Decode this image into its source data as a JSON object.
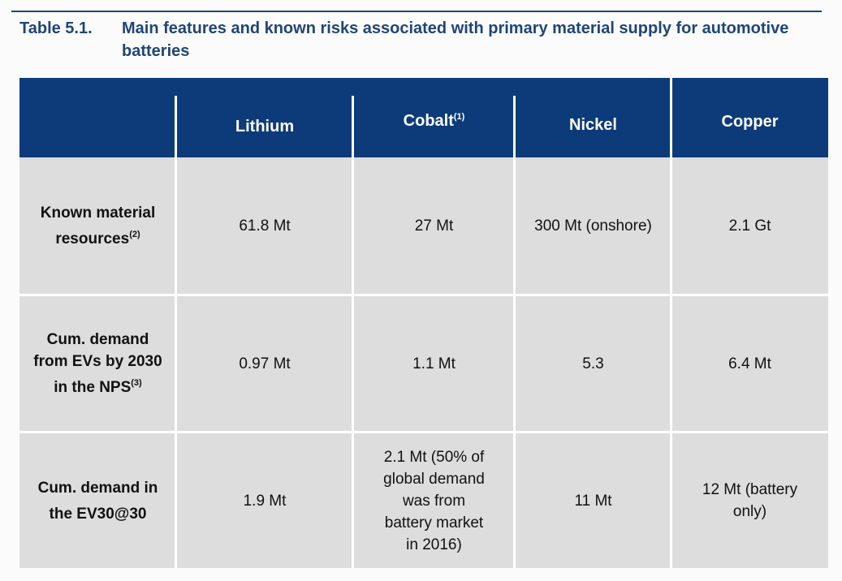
{
  "caption": {
    "number": "Table 5.1.",
    "title": "Main features and known risks associated with primary material supply for automotive batteries"
  },
  "columns": [
    {
      "label": "Lithium",
      "sup": ""
    },
    {
      "label": "Cobalt",
      "sup": "(1)"
    },
    {
      "label": "Nickel",
      "sup": ""
    },
    {
      "label": "Copper",
      "sup": ""
    }
  ],
  "rows": [
    {
      "head_lines": [
        "Known material",
        "resources"
      ],
      "head_sup": "(2)",
      "values": [
        "61.8 Mt",
        "27 Mt",
        "300 Mt (onshore)",
        "2.1 Gt"
      ]
    },
    {
      "head_lines": [
        "Cum. demand",
        "from EVs by 2030",
        "in the NPS"
      ],
      "head_sup": "(3)",
      "values": [
        "0.97 Mt",
        "1.1 Mt",
        "5.3",
        "6.4 Mt"
      ]
    },
    {
      "head_lines": [
        "Cum. demand in",
        "the EV30@30"
      ],
      "head_sup": "",
      "values": [
        "1.9 Mt",
        "2.1 Mt (50% of global demand was from battery market in 2016)",
        "11 Mt",
        "12 Mt (battery only)"
      ]
    }
  ],
  "colors": {
    "header": "#0d3b7a",
    "caption": "#1f4578",
    "cell": "#dddddd"
  }
}
